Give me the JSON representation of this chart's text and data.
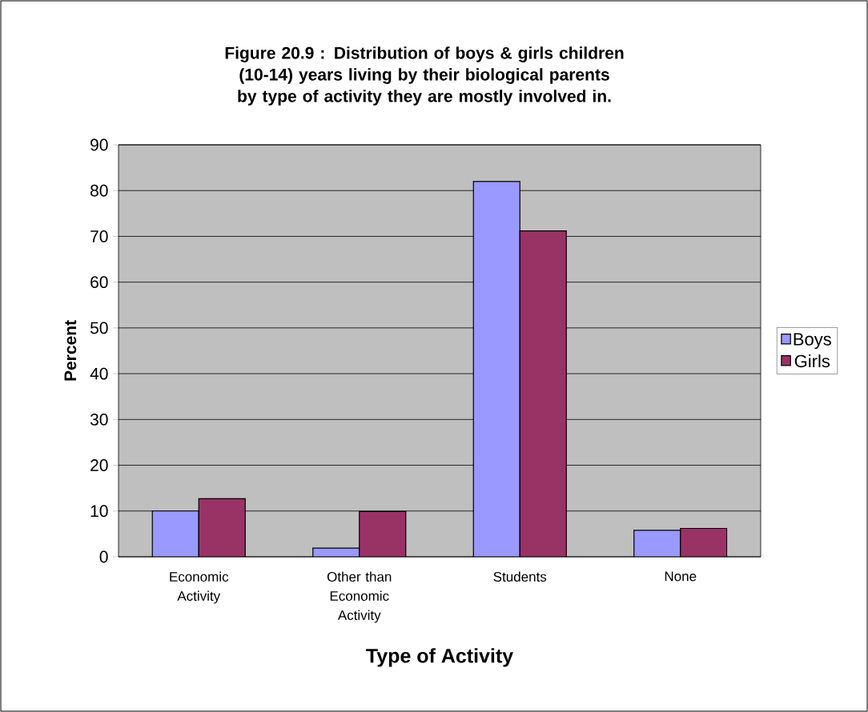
{
  "chart_data": {
    "type": "bar",
    "title": "Figure 20.9  : Distribution of boys & girls children (10-14) years living by their biological parents by type of activity they are mostly involved in.",
    "xlabel": "Type of Activity",
    "ylabel": "Percent",
    "categories": [
      "Economic Activity",
      "Other than Economic Activity",
      "Students",
      "None"
    ],
    "series": [
      {
        "name": "Boys",
        "color": "#9999ff",
        "values": [
          10.0,
          1.9,
          82.0,
          5.8
        ]
      },
      {
        "name": "Girls",
        "color": "#993366",
        "values": [
          12.7,
          9.9,
          71.2,
          6.2
        ]
      }
    ],
    "ylim": [
      0,
      90
    ],
    "yticks": [
      0,
      10,
      20,
      30,
      40,
      50,
      60,
      70,
      80,
      90
    ],
    "grid": "y",
    "legend": "right"
  }
}
